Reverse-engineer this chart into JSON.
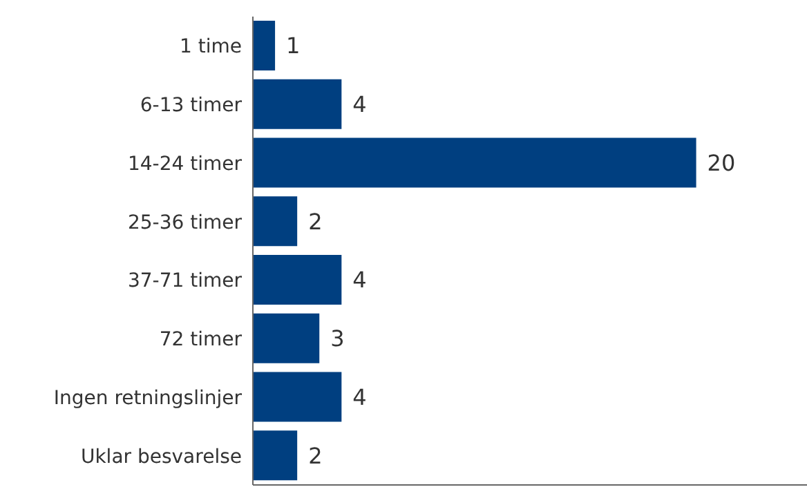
{
  "chart_data": {
    "type": "bar",
    "orientation": "horizontal",
    "categories": [
      "1 time",
      "6-13 timer",
      "14-24 timer",
      "25-36 timer",
      "37-71 timer",
      "72 timer",
      "Ingen retningslinjer",
      "Uklar besvarelse"
    ],
    "values": [
      1,
      4,
      20,
      2,
      4,
      3,
      4,
      2
    ],
    "color": "#003f80",
    "xlim": [
      0,
      25
    ],
    "tick_labels": "y",
    "data_labels": true
  }
}
